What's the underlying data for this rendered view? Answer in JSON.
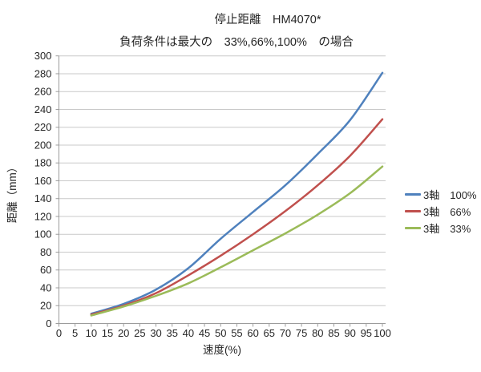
{
  "chart_data": {
    "type": "line",
    "title": "停止距離　HM4070*",
    "subtitle": "負荷条件は最大の　33%,66%,100%　の場合",
    "xlabel": "速度(%)",
    "ylabel": "距離（mm）",
    "xlim": [
      0,
      100
    ],
    "ylim": [
      0,
      300
    ],
    "x_ticks": [
      0,
      5,
      10,
      15,
      20,
      25,
      30,
      35,
      40,
      45,
      50,
      55,
      60,
      65,
      70,
      75,
      80,
      85,
      90,
      95,
      100
    ],
    "y_ticks": [
      0,
      20,
      40,
      60,
      80,
      100,
      120,
      140,
      160,
      180,
      200,
      220,
      240,
      260,
      280,
      300
    ],
    "grid": "horizontal",
    "legend_position": "right",
    "x": [
      10,
      20,
      30,
      40,
      50,
      60,
      70,
      80,
      90,
      100
    ],
    "series": [
      {
        "name": "3軸　100%",
        "color": "#4F81BD",
        "values": [
          11,
          22,
          38,
          62,
          95,
          125,
          155,
          190,
          228,
          281
        ]
      },
      {
        "name": "3軸　66%",
        "color": "#C0504D",
        "values": [
          10,
          20,
          34,
          54,
          76,
          100,
          126,
          155,
          188,
          229
        ]
      },
      {
        "name": "3軸　33%",
        "color": "#9BBB59",
        "values": [
          9,
          19,
          31,
          45,
          63,
          82,
          101,
          122,
          146,
          176
        ]
      }
    ],
    "colors": {
      "grid": "#c9c9c9",
      "axis": "#9c9c9c",
      "text": "#262626",
      "background": "#ffffff"
    }
  }
}
